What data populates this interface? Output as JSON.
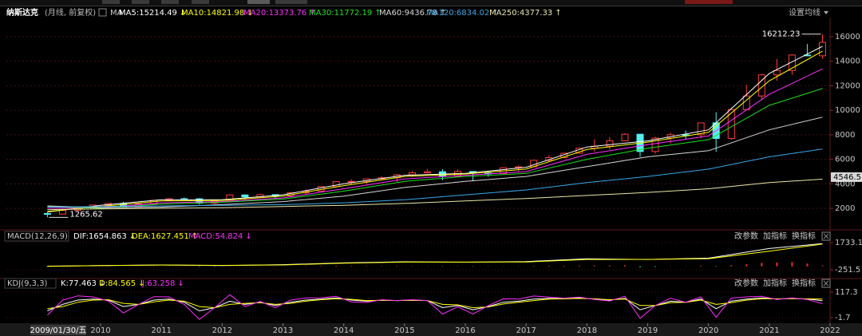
{
  "header": {
    "title": "纳斯达克",
    "subtitle": "(月线, 前复权)",
    "ma_label": "MA",
    "settings": "设置均线"
  },
  "footer": {
    "date_label": "2009/01/30/五"
  },
  "chart_data": [
    {
      "type": "candlestick",
      "xlim": [
        2008.45,
        2022
      ],
      "xticks": [
        2010,
        2011,
        2012,
        2013,
        2014,
        2015,
        2016,
        2017,
        2018,
        2019,
        2020,
        2021,
        2022
      ],
      "ylim": [
        440,
        17040
      ],
      "yticks": [
        2000,
        4000,
        6000,
        8000,
        10000,
        12000,
        14000,
        16000
      ],
      "grid": true,
      "up_color": "#ff3c3c",
      "down_color": "#54f0f0",
      "max_label": "16212.23",
      "min_label": "1265.62",
      "cursor_tag": 4546.5,
      "x": [
        2009.125,
        2009.375,
        2009.625,
        2009.875,
        2010.125,
        2010.375,
        2010.625,
        2010.875,
        2011.125,
        2011.375,
        2011.625,
        2011.875,
        2012.125,
        2012.375,
        2012.625,
        2012.875,
        2013.125,
        2013.375,
        2013.625,
        2013.875,
        2014.125,
        2014.375,
        2014.625,
        2014.875,
        2015.125,
        2015.375,
        2015.625,
        2015.875,
        2016.125,
        2016.375,
        2016.625,
        2016.875,
        2017.125,
        2017.375,
        2017.625,
        2017.875,
        2018.125,
        2018.375,
        2018.625,
        2018.875,
        2019.125,
        2019.375,
        2019.625,
        2019.875,
        2020.125,
        2020.375,
        2020.625,
        2020.875,
        2021.125,
        2021.375,
        2021.625,
        2021.875
      ],
      "open": [
        1577,
        1529,
        1835,
        2122,
        2269,
        2398,
        2109,
        2369,
        2653,
        2781,
        2774,
        2415,
        2605,
        3091,
        2935,
        3116,
        3019,
        3267,
        3403,
        3771,
        4177,
        4199,
        4408,
        4493,
        4736,
        4900,
        4987,
        4620,
        5007,
        4870,
        4843,
        5312,
        5383,
        5912,
        6140,
        6496,
        6903,
        7063,
        7510,
        8046,
        6635,
        7729,
        8006,
        7999,
        8973,
        7700,
        10058,
        11168,
        12888,
        13247,
        14504,
        14448
      ],
      "high": [
        1670,
        1880,
        2170,
        2300,
        2430,
        2535,
        2400,
        2690,
        2840,
        2890,
        2840,
        2710,
        3140,
        3135,
        3200,
        3120,
        3300,
        3530,
        3800,
        4180,
        4370,
        4420,
        4610,
        4810,
        5040,
        5230,
        5200,
        5180,
        5010,
        4980,
        5340,
        5510,
        5930,
        6340,
        6520,
        6960,
        7640,
        7810,
        8140,
        8050,
        7850,
        8180,
        8340,
        9000,
        9840,
        10220,
        12070,
        12970,
        14180,
        14570,
        15400,
        16212.23
      ],
      "low": [
        1265.62,
        1520,
        1780,
        2020,
        2100,
        2060,
        2060,
        2350,
        2600,
        2690,
        2300,
        2330,
        2600,
        2730,
        2900,
        2810,
        3010,
        3150,
        3390,
        3760,
        3940,
        3950,
        4350,
        4120,
        4560,
        4850,
        4290,
        4580,
        4210,
        4570,
        4820,
        5030,
        5370,
        5800,
        6080,
        6460,
        6630,
        6800,
        7490,
        6190,
        6460,
        7290,
        7660,
        7700,
        6630,
        7590,
        10010,
        10820,
        12400,
        12900,
        14450,
        14180
      ],
      "close": [
        1529,
        1835,
        2122,
        2269,
        2398,
        2109,
        2369,
        2653,
        2781,
        2774,
        2415,
        2605,
        3091,
        2935,
        3116,
        3019,
        3267,
        3403,
        3771,
        4177,
        4199,
        4408,
        4493,
        4736,
        4900,
        4987,
        4620,
        5007,
        4870,
        4843,
        5312,
        5383,
        5912,
        6140,
        6496,
        6903,
        7063,
        7510,
        8046,
        6635,
        7729,
        8006,
        7999,
        8973,
        7700,
        10058,
        11168,
        12888,
        13247,
        14504,
        14448,
        15537
      ],
      "series": [
        {
          "name": "MA5",
          "legend_label": "MA5:15214.49",
          "trend": "↓",
          "color": "#ffffff",
          "x": [
            2009.125,
            2010,
            2011,
            2012,
            2013,
            2014,
            2015,
            2016,
            2017,
            2018,
            2019,
            2020,
            2021,
            2021.875
          ],
          "values": [
            1700,
            2250,
            2700,
            2700,
            3100,
            4000,
            4700,
            4850,
            5350,
            7000,
            7500,
            8400,
            13000,
            15214.49
          ]
        },
        {
          "name": "MA10",
          "legend_label": "MA10:14821.98",
          "trend": "↓",
          "color": "#ffff00",
          "x": [
            2009.125,
            2010,
            2011,
            2012,
            2013,
            2014,
            2015,
            2016,
            2017,
            2018,
            2019,
            2020,
            2021,
            2021.875
          ],
          "values": [
            1750,
            2150,
            2600,
            2650,
            3000,
            3850,
            4600,
            4800,
            5200,
            6800,
            7400,
            8200,
            12400,
            14821.98
          ]
        },
        {
          "name": "MA20",
          "legend_label": "MA20:13373.76",
          "trend": "↑",
          "color": "#ff30ff",
          "x": [
            2009.125,
            2010,
            2011,
            2012,
            2013,
            2014,
            2015,
            2016,
            2017,
            2018,
            2019,
            2020,
            2021,
            2021.875
          ],
          "values": [
            2000,
            2050,
            2450,
            2550,
            2850,
            3600,
            4400,
            4700,
            5000,
            6400,
            7200,
            7900,
            11300,
            13373.76
          ]
        },
        {
          "name": "MA30",
          "legend_label": "MA30:11772.19",
          "trend": "↑",
          "color": "#20e020",
          "x": [
            2009.125,
            2010,
            2011,
            2012,
            2013,
            2014,
            2015,
            2016,
            2017,
            2018,
            2019,
            2020,
            2021,
            2021.875
          ],
          "values": [
            2150,
            2000,
            2350,
            2500,
            2750,
            3400,
            4200,
            4600,
            4850,
            6000,
            6900,
            7600,
            10400,
            11772.19
          ]
        },
        {
          "name": "MA60",
          "legend_label": "MA60:9436.78",
          "trend": "↑",
          "color": "#d8d8d8",
          "x": [
            2009.125,
            2010,
            2011,
            2012,
            2013,
            2014,
            2015,
            2016,
            2017,
            2018,
            2019,
            2020,
            2021,
            2021.875
          ],
          "values": [
            2200,
            2050,
            2100,
            2300,
            2550,
            3000,
            3700,
            4200,
            4600,
            5400,
            6200,
            6700,
            8400,
            9436.78
          ]
        },
        {
          "name": "MA120",
          "legend_label": "MA120:6834.02",
          "trend": "↑",
          "color": "#3aa8e8",
          "x": [
            2009.125,
            2010,
            2011,
            2012,
            2013,
            2014,
            2015,
            2016,
            2017,
            2018,
            2019,
            2020,
            2021,
            2021.875
          ],
          "values": [
            2100,
            2150,
            2200,
            2250,
            2300,
            2450,
            2700,
            3100,
            3500,
            4100,
            4600,
            5200,
            6200,
            6834.02
          ]
        },
        {
          "name": "MA250",
          "legend_label": "MA250:4377.33",
          "trend": "↑",
          "color": "#e8e8a8",
          "x": [
            2009.125,
            2010,
            2011,
            2012,
            2013,
            2014,
            2015,
            2016,
            2017,
            2018,
            2019,
            2020,
            2021,
            2021.875
          ],
          "values": [
            1900,
            1950,
            2000,
            2050,
            2150,
            2250,
            2400,
            2600,
            2800,
            3050,
            3300,
            3600,
            4100,
            4377.33
          ]
        }
      ]
    },
    {
      "type": "macd",
      "title": "MACD(12,26,9)",
      "buttons": [
        "改参数",
        "加指标",
        "换指标"
      ],
      "ylim": [
        -777,
        2550
      ],
      "yticks": [
        1733.1,
        -251.5
      ],
      "name": "MACD",
      "legend_label": "MACD:54.824",
      "trend": "↓",
      "color": "#ff30ff",
      "up_color": "#e83030",
      "down_color": "#40d0d0",
      "x": [
        2009.125,
        2009.375,
        2009.625,
        2009.875,
        2010.125,
        2010.375,
        2010.625,
        2010.875,
        2011.125,
        2011.375,
        2011.625,
        2011.875,
        2012.125,
        2012.375,
        2012.625,
        2012.875,
        2013.125,
        2013.375,
        2013.625,
        2013.875,
        2014.125,
        2014.375,
        2014.625,
        2014.875,
        2015.125,
        2015.375,
        2015.625,
        2015.875,
        2016.125,
        2016.375,
        2016.625,
        2016.875,
        2017.125,
        2017.375,
        2017.625,
        2017.875,
        2018.125,
        2018.375,
        2018.625,
        2018.875,
        2019.125,
        2019.375,
        2019.625,
        2019.875,
        2020.125,
        2020.375,
        2020.625,
        2020.875,
        2021.125,
        2021.375,
        2021.625,
        2021.875
      ],
      "values": [
        -40,
        -20,
        10,
        30,
        20,
        -10,
        10,
        20,
        20,
        10,
        -30,
        -20,
        10,
        5,
        10,
        -5,
        10,
        20,
        30,
        40,
        30,
        20,
        20,
        30,
        20,
        10,
        -20,
        -10,
        -20,
        -10,
        10,
        10,
        30,
        40,
        40,
        50,
        60,
        60,
        80,
        -60,
        -40,
        10,
        10,
        40,
        -30,
        80,
        150,
        250,
        280,
        300,
        200,
        54.824
      ],
      "series": [
        {
          "name": "DIF",
          "legend_label": "DIF:1654.863",
          "trend": "↓",
          "color": "#ffffff",
          "x": [
            2009.125,
            2010,
            2011,
            2012,
            2013,
            2014,
            2015,
            2016,
            2017,
            2018,
            2019,
            2020,
            2021,
            2021.875
          ],
          "values": [
            10,
            60,
            100,
            60,
            120,
            250,
            330,
            300,
            350,
            550,
            500,
            600,
            1300,
            1654.863
          ]
        },
        {
          "name": "DEA",
          "legend_label": "DEA:1627.451",
          "trend": "↑",
          "color": "#ffff00",
          "x": [
            2009.125,
            2010,
            2011,
            2012,
            2013,
            2014,
            2015,
            2016,
            2017,
            2018,
            2019,
            2020,
            2021,
            2021.875
          ],
          "values": [
            0,
            50,
            90,
            70,
            100,
            230,
            310,
            310,
            320,
            500,
            510,
            560,
            1100,
            1627.451
          ]
        }
      ]
    },
    {
      "type": "kdj",
      "title": "KDJ(9,3,3)",
      "buttons": [
        "改参数",
        "加指标",
        "换指标"
      ],
      "ylim": [
        -27.7,
        150.8
      ],
      "yticks": [
        117.3,
        -1.7
      ],
      "x": [
        2009.125,
        2009.375,
        2009.625,
        2009.875,
        2010.125,
        2010.375,
        2010.625,
        2010.875,
        2011.125,
        2011.375,
        2011.625,
        2011.875,
        2012.125,
        2012.375,
        2012.625,
        2012.875,
        2013.125,
        2013.375,
        2013.625,
        2013.875,
        2014.125,
        2014.375,
        2014.625,
        2014.875,
        2015.125,
        2015.375,
        2015.625,
        2015.875,
        2016.125,
        2016.375,
        2016.625,
        2016.875,
        2017.125,
        2017.375,
        2017.625,
        2017.875,
        2018.125,
        2018.375,
        2018.625,
        2018.875,
        2019.125,
        2019.375,
        2019.625,
        2019.875,
        2020.125,
        2020.375,
        2020.625,
        2020.875,
        2021.125,
        2021.375,
        2021.625,
        2021.875
      ],
      "series": [
        {
          "name": "K",
          "legend_label": "K:77.463",
          "trend": "↓",
          "color": "#ffffff",
          "values": [
            30,
            60,
            80,
            85,
            80,
            50,
            60,
            80,
            85,
            70,
            30,
            45,
            75,
            60,
            70,
            55,
            70,
            80,
            85,
            90,
            80,
            75,
            80,
            78,
            80,
            78,
            45,
            55,
            35,
            50,
            70,
            75,
            85,
            88,
            87,
            90,
            85,
            80,
            88,
            35,
            55,
            75,
            70,
            85,
            40,
            75,
            85,
            90,
            85,
            88,
            85,
            77.463
          ]
        },
        {
          "name": "D",
          "legend_label": "D:84.565",
          "trend": "↓",
          "color": "#ffff00",
          "values": [
            40,
            50,
            70,
            80,
            82,
            65,
            60,
            72,
            80,
            75,
            50,
            45,
            60,
            65,
            68,
            60,
            65,
            75,
            82,
            86,
            84,
            78,
            79,
            78,
            79,
            78,
            60,
            58,
            45,
            48,
            62,
            70,
            78,
            85,
            86,
            88,
            86,
            82,
            85,
            55,
            55,
            68,
            70,
            80,
            60,
            68,
            80,
            86,
            86,
            87,
            86,
            84.565
          ]
        },
        {
          "name": "J",
          "legend_label": "J:63.258",
          "trend": "↓",
          "color": "#ff30ff",
          "values": [
            10,
            80,
            100,
            95,
            76,
            20,
            60,
            96,
            95,
            60,
            -10,
            45,
            105,
            50,
            74,
            45,
            80,
            90,
            91,
            98,
            72,
            69,
            82,
            78,
            82,
            78,
            15,
            49,
            15,
            54,
            86,
            85,
            99,
            94,
            89,
            94,
            83,
            76,
            98,
            -5,
            55,
            89,
            70,
            95,
            0,
            89,
            95,
            98,
            83,
            90,
            83,
            63.258
          ]
        }
      ]
    }
  ]
}
